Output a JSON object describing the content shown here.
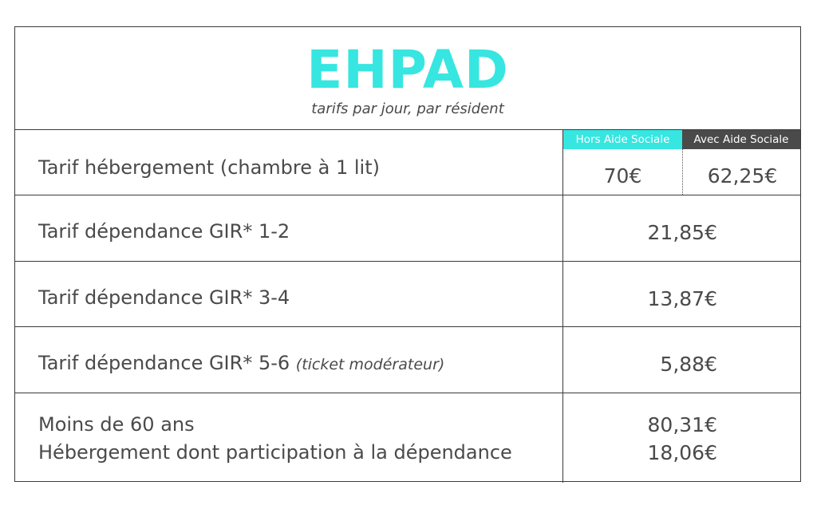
{
  "header": {
    "title": "EHPAD",
    "subtitle": "tarifs par jour, par résident"
  },
  "columns": {
    "hors_aide": "Hors Aide Sociale",
    "avec_aide": "Avec Aide Sociale"
  },
  "rows": [
    {
      "label": "Tarif hébergement (chambre à 1 lit)",
      "value_hors": "70€",
      "value_avec": "62,25€"
    },
    {
      "label": "Tarif dépendance GIR* 1-2",
      "value": "21,85€"
    },
    {
      "label": "Tarif dépendance GIR* 3-4",
      "value": "13,87€"
    },
    {
      "label": "Tarif dépendance GIR* 5-6",
      "note": "(ticket modérateur)",
      "value": "5,88€"
    },
    {
      "label_line1": "Moins de 60 ans",
      "label_line2": "Hébergement dont participation à la dépendance",
      "value_line1": "80,31€",
      "value_line2": "18,06€"
    }
  ],
  "colors": {
    "accent": "#37e6e0",
    "dark": "#4a4a4a",
    "border": "#3a3a3a"
  }
}
